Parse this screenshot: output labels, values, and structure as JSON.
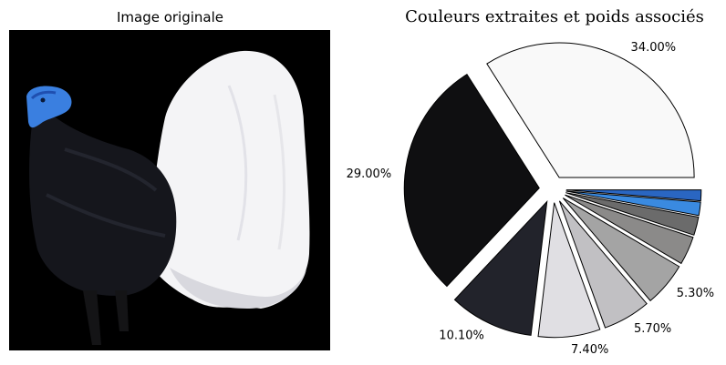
{
  "left_panel": {
    "title": "Image originale"
  },
  "chart_data": {
    "type": "pie",
    "title": "Couleurs extraites et poids associés",
    "legend": "none",
    "slices": [
      {
        "label": "34.00%",
        "value": 34.0,
        "color": "#f9f9f9"
      },
      {
        "label": "29.00%",
        "value": 29.0,
        "color": "#0f0f11"
      },
      {
        "label": "10.10%",
        "value": 10.1,
        "color": "#22232b"
      },
      {
        "label": "7.40%",
        "value": 7.4,
        "color": "#e0dfe3"
      },
      {
        "label": "5.70%",
        "value": 5.7,
        "color": "#c1c0c3"
      },
      {
        "label": "5.30%",
        "value": 5.3,
        "color": "#a4a4a4"
      },
      {
        "label": "",
        "value": 3.4,
        "color": "#8b8a89"
      },
      {
        "label": "",
        "value": 2.2,
        "color": "#6b6b6b"
      },
      {
        "label": "",
        "value": 1.6,
        "color": "#3a8ae0"
      },
      {
        "label": "",
        "value": 1.3,
        "color": "#2a66c2"
      }
    ]
  }
}
